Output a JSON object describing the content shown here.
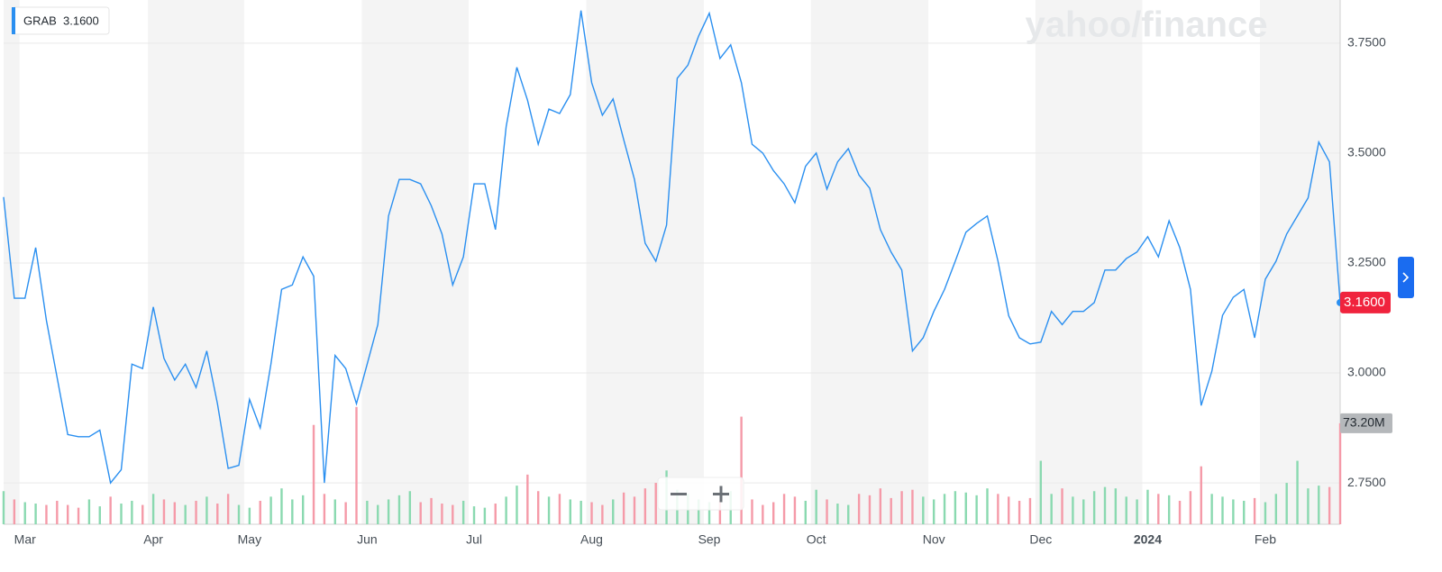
{
  "chart_data": {
    "type": "line",
    "watermark": "yahoo/finance",
    "categories": [
      null,
      null,
      "Mar",
      null,
      null,
      null,
      null,
      null,
      null,
      null,
      null,
      null,
      null,
      null,
      "Apr",
      null,
      null,
      null,
      null,
      null,
      null,
      null,
      null,
      "May",
      null,
      null,
      null,
      null,
      null,
      null,
      null,
      null,
      null,
      null,
      "Jun",
      null,
      null,
      null,
      null,
      null,
      null,
      null,
      null,
      null,
      "Jul",
      null,
      null,
      null,
      null,
      null,
      null,
      null,
      null,
      null,
      null,
      "Aug",
      null,
      null,
      null,
      null,
      null,
      null,
      null,
      null,
      null,
      null,
      "Sep",
      null,
      null,
      null,
      null,
      null,
      null,
      null,
      null,
      null,
      "Oct",
      null,
      null,
      null,
      null,
      null,
      null,
      null,
      null,
      null,
      null,
      "Nov",
      null,
      null,
      null,
      null,
      null,
      null,
      null,
      null,
      null,
      "Dec",
      null,
      null,
      null,
      null,
      null,
      null,
      null,
      null,
      null,
      "2024",
      null,
      null,
      null,
      null,
      null,
      null,
      null,
      null,
      null,
      null,
      "Feb",
      null,
      null,
      null,
      null,
      null,
      null,
      null
    ],
    "series": [
      {
        "name": "GRAB",
        "color": "#2a8ff0",
        "values": [
          3.4,
          3.17,
          3.17,
          3.285,
          3.12,
          2.99,
          2.86,
          2.855,
          2.855,
          2.87,
          2.75,
          2.78,
          3.02,
          3.01,
          3.15,
          3.033,
          2.984,
          3.02,
          2.967,
          3.05,
          2.93,
          2.783,
          2.79,
          2.94,
          2.875,
          3.02,
          3.19,
          3.2,
          3.264,
          3.22,
          2.75,
          3.04,
          3.01,
          2.93,
          3.02,
          3.11,
          3.357,
          3.44,
          3.44,
          3.43,
          3.38,
          3.316,
          3.2,
          3.264,
          3.43,
          3.43,
          3.326,
          3.56,
          3.695,
          3.62,
          3.52,
          3.6,
          3.59,
          3.633,
          3.824,
          3.66,
          3.586,
          3.623,
          3.53,
          3.44,
          3.295,
          3.254,
          3.336,
          3.67,
          3.7,
          3.766,
          3.818,
          3.715,
          3.746,
          3.66,
          3.52,
          3.5,
          3.46,
          3.43,
          3.387,
          3.47,
          3.5,
          3.418,
          3.48,
          3.51,
          3.45,
          3.42,
          3.326,
          3.275,
          3.234,
          3.05,
          3.08,
          3.14,
          3.19,
          3.254,
          3.32,
          3.34,
          3.357,
          3.254,
          3.13,
          3.08,
          3.066,
          3.07,
          3.14,
          3.11,
          3.14,
          3.14,
          3.16,
          3.234,
          3.234,
          3.26,
          3.275,
          3.31,
          3.264,
          3.346,
          3.285,
          3.19,
          2.926,
          3.004,
          3.131,
          3.172,
          3.19,
          3.08,
          3.213,
          3.254,
          3.316,
          3.357,
          3.398,
          3.525,
          3.48,
          3.16
        ]
      },
      {
        "axis": "y2",
        "up_color": "#8ad9b0",
        "down_color": "#f59aa8",
        "values": [
          24,
          18,
          16,
          15,
          14,
          17,
          14,
          12,
          18,
          13,
          20,
          15,
          17,
          14,
          22,
          18,
          16,
          14,
          17,
          20,
          15,
          22,
          14,
          12,
          17,
          20,
          26,
          18,
          21,
          72,
          22,
          18,
          16,
          85,
          17,
          14,
          18,
          21,
          24,
          16,
          19,
          15,
          14,
          17,
          13,
          12,
          15,
          20,
          28,
          36,
          24,
          20,
          22,
          18,
          17,
          16,
          14,
          18,
          23,
          20,
          26,
          30,
          39,
          25,
          22,
          18,
          16,
          17,
          24,
          78,
          18,
          14,
          16,
          22,
          20,
          17,
          25,
          18,
          15,
          14,
          22,
          21,
          26,
          19,
          24,
          25,
          20,
          18,
          22,
          24,
          23,
          21,
          26,
          22,
          20,
          17,
          19,
          46,
          22,
          26,
          20,
          18,
          24,
          27,
          26,
          20,
          18,
          25,
          22,
          21,
          17,
          24,
          42,
          22,
          20,
          18,
          17,
          19,
          16,
          22,
          30,
          46,
          26,
          28,
          27,
          73.2
        ]
      }
    ],
    "last_price": {
      "value": 3.16,
      "label": "3.1600"
    },
    "ylim": [
      2.656,
      3.848
    ],
    "yticks": [
      {
        "value": 2.75,
        "label": "2.7500"
      },
      {
        "value": 3.0,
        "label": "3.0000"
      },
      {
        "value": 3.25,
        "label": "3.2500"
      },
      {
        "value": 3.5,
        "label": "3.5000"
      },
      {
        "value": 3.75,
        "label": "3.7500"
      }
    ],
    "y2lim": [
      0,
      380
    ],
    "y2ticks": [
      {
        "value": 73.2,
        "label": "73.20M"
      }
    ],
    "grid": true
  }
}
